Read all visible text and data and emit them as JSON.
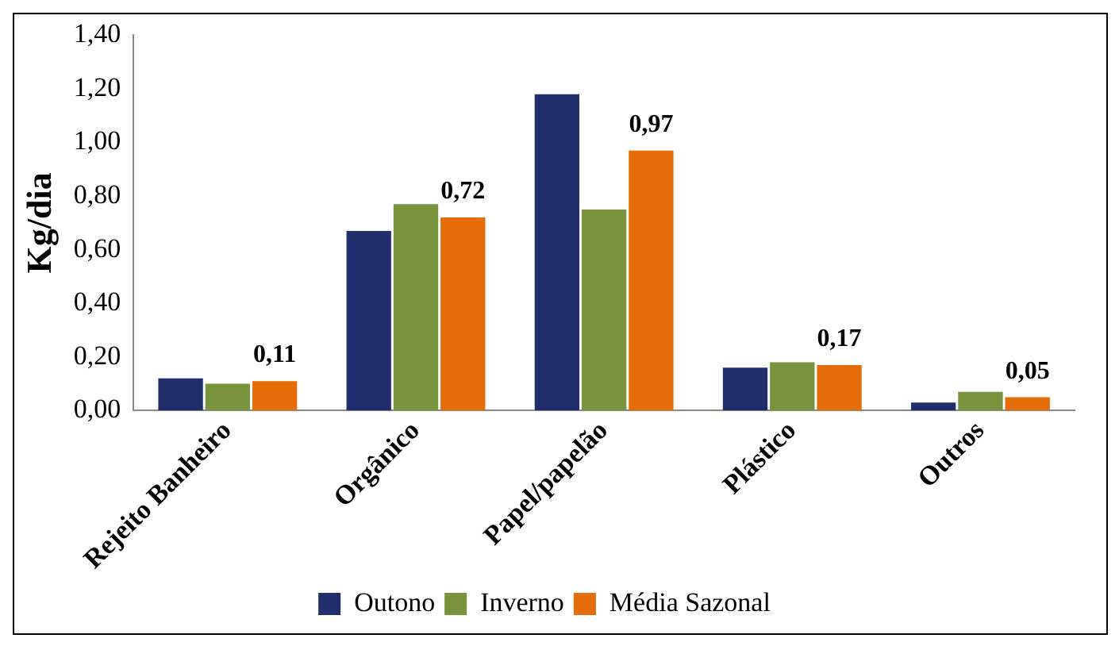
{
  "chart_data": {
    "type": "bar",
    "ylabel": "Kg/dia",
    "categories": [
      "Rejeito Banheiro",
      "Orgânico",
      "Papel/papelão",
      "Plástico",
      "Outros"
    ],
    "series": [
      {
        "name": "Outono",
        "color": "#1f2f6b",
        "values": [
          0.12,
          0.67,
          1.18,
          0.16,
          0.03
        ]
      },
      {
        "name": "Inverno",
        "color": "#77933c",
        "values": [
          0.1,
          0.77,
          0.75,
          0.18,
          0.07
        ]
      },
      {
        "name": "Média Sazonal",
        "color": "#e46c0a",
        "values": [
          0.11,
          0.72,
          0.97,
          0.17,
          0.05
        ],
        "value_labels": [
          "0,11",
          "0,72",
          "0,97",
          "0,17",
          "0,05"
        ]
      }
    ],
    "ylim": [
      0,
      1.4
    ],
    "yticks": [
      {
        "value": 0,
        "label": "0,00"
      },
      {
        "value": 0.2,
        "label": "0,20"
      },
      {
        "value": 0.4,
        "label": "0,40"
      },
      {
        "value": 0.6,
        "label": "0,60"
      },
      {
        "value": 0.8,
        "label": "0,80"
      },
      {
        "value": 1,
        "label": "1,00"
      },
      {
        "value": 1.2,
        "label": "1,20"
      },
      {
        "value": 1.4,
        "label": "1,40"
      }
    ],
    "grid": false,
    "legend": "bottom"
  }
}
